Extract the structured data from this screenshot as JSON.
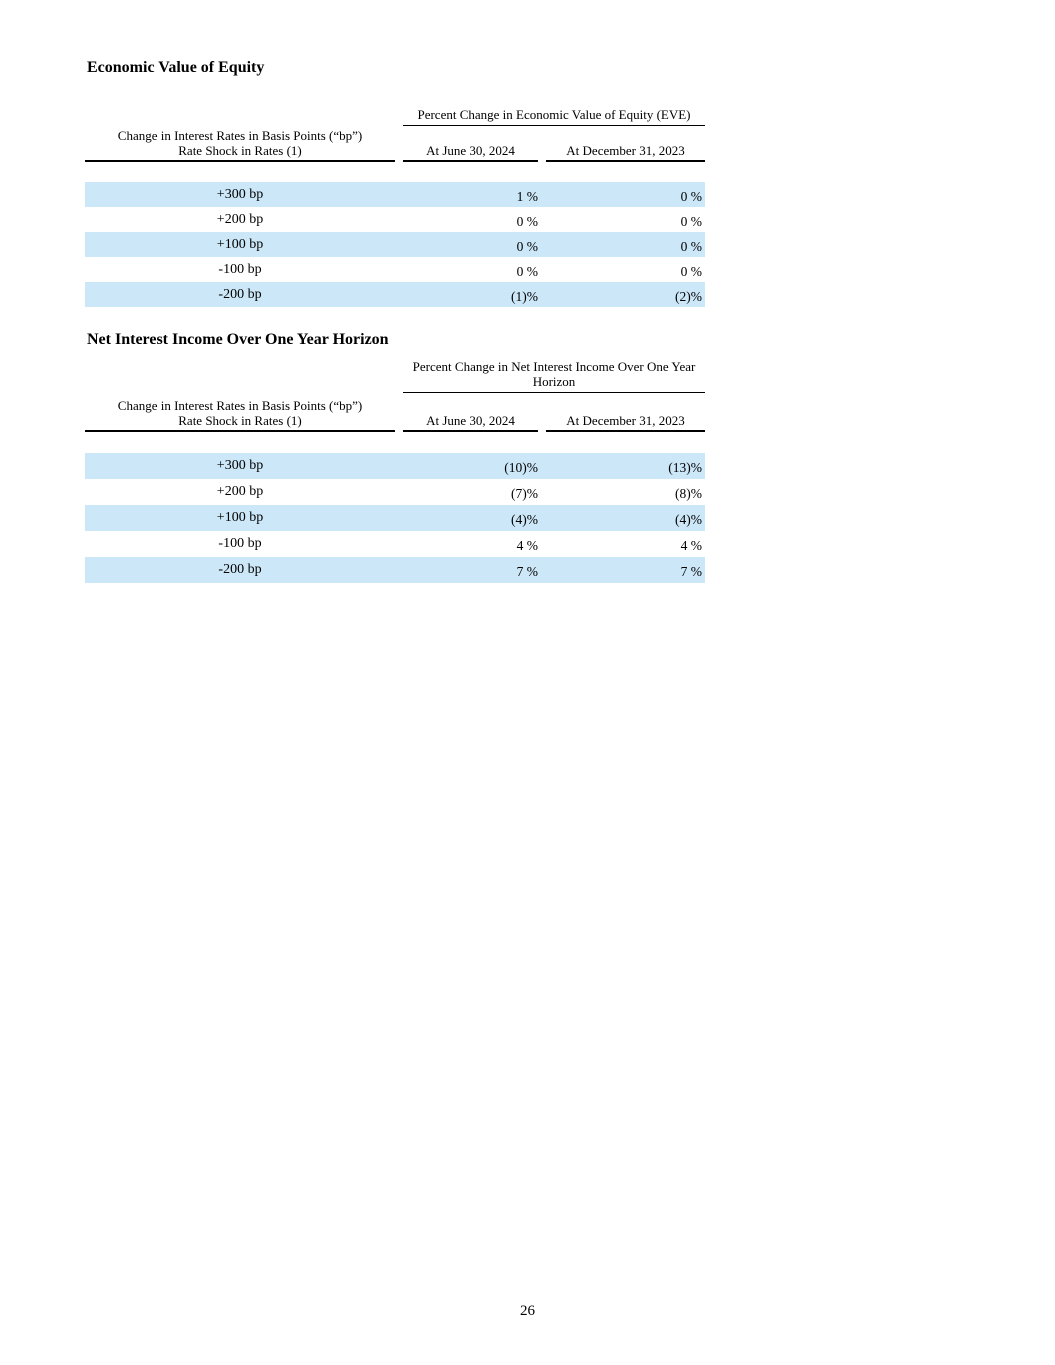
{
  "page": {
    "number": "26"
  },
  "tables": [
    {
      "title": "Economic Value of Equity",
      "span_header": "Percent Change in Economic Value of Equity (EVE)",
      "row_header_line1": "Change in Interest Rates in Basis Points (“bp”)",
      "row_header_line2": "Rate Shock in Rates (1)",
      "col1_header": "At June 30, 2024",
      "col2_header": "At December 31, 2023",
      "rows": [
        {
          "label": "+300 bp",
          "col1": "1 %",
          "col2": "0 %"
        },
        {
          "label": "+200 bp",
          "col1": "0 %",
          "col2": "0 %"
        },
        {
          "label": "+100 bp",
          "col1": "0 %",
          "col2": "0 %"
        },
        {
          "label": "-100 bp",
          "col1": "0 %",
          "col2": "0 %"
        },
        {
          "label": "-200 bp",
          "col1": "(1)%",
          "col2": "(2)%"
        }
      ],
      "highlight_color": "#cce7f8"
    },
    {
      "title": "Net Interest Income Over One Year Horizon",
      "span_header": "Percent Change in Net Interest Income Over One Year Horizon",
      "row_header_line1": "Change in Interest Rates in Basis Points (“bp”)",
      "row_header_line2": "Rate Shock in Rates (1)",
      "col1_header": "At June 30, 2024",
      "col2_header": "At December 31, 2023",
      "rows": [
        {
          "label": "+300 bp",
          "col1": "(10)%",
          "col2": "(13)%"
        },
        {
          "label": "+200 bp",
          "col1": "(7)%",
          "col2": "(8)%"
        },
        {
          "label": "+100 bp",
          "col1": "(4)%",
          "col2": "(4)%"
        },
        {
          "label": "-100 bp",
          "col1": "4 %",
          "col2": "4 %"
        },
        {
          "label": "-200 bp",
          "col1": "7 %",
          "col2": "7 %"
        }
      ],
      "highlight_color": "#cce7f8"
    }
  ]
}
